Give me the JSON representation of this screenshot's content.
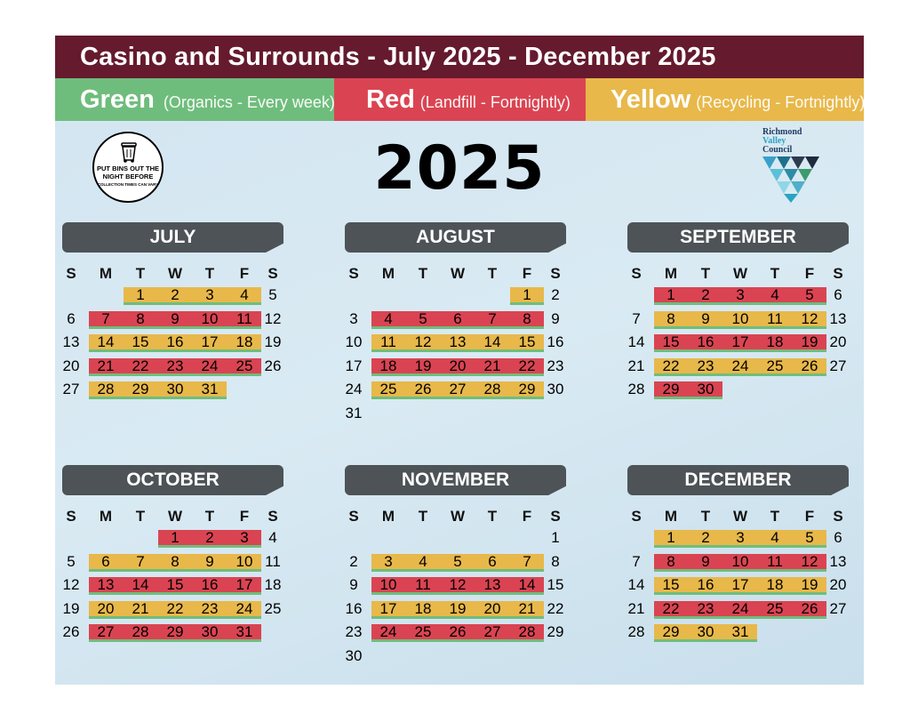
{
  "title": "Casino and Surrounds - July 2025 - December 2025",
  "legend": {
    "green": {
      "name": "Green",
      "desc": "(Organics - Every week)"
    },
    "red": {
      "name": "Red",
      "desc": "(Landfill - Fortnightly)"
    },
    "yellow": {
      "name": "Yellow",
      "desc": "(Recycling - Fortnightly)"
    }
  },
  "logo": {
    "line1": "PUT BINS OUT THE NIGHT BEFORE",
    "line2": "COLLECTION TIMES CAN VARY",
    "icon": "wheelie-bin-icon"
  },
  "year": "2025",
  "council": {
    "line1": "Richmond",
    "line2": "Valley",
    "line3": "Council"
  },
  "colors": {
    "green": "#6fbd7c",
    "red": "#da4452",
    "yellow": "#e8b84a",
    "header": "#651a2e"
  },
  "dow": [
    "S",
    "M",
    "T",
    "W",
    "T",
    "F",
    "S"
  ],
  "months": [
    {
      "name": "JULY",
      "start": 2,
      "days": 31,
      "weeks": [
        "y",
        "r",
        "y",
        "r",
        "y"
      ]
    },
    {
      "name": "AUGUST",
      "start": 5,
      "days": 31,
      "weeks": [
        "y",
        "r",
        "y",
        "r",
        "y",
        "n"
      ]
    },
    {
      "name": "SEPTEMBER",
      "start": 1,
      "days": 30,
      "weeks": [
        "r",
        "y",
        "r",
        "y",
        "r"
      ]
    },
    {
      "name": "OCTOBER",
      "start": 3,
      "days": 31,
      "weeks": [
        "r",
        "y",
        "r",
        "y",
        "r"
      ]
    },
    {
      "name": "NOVEMBER",
      "start": 6,
      "days": 30,
      "weeks": [
        "n",
        "y",
        "r",
        "y",
        "r",
        "n"
      ]
    },
    {
      "name": "DECEMBER",
      "start": 1,
      "days": 31,
      "weeks": [
        "y",
        "r",
        "y",
        "r",
        "y"
      ]
    }
  ]
}
